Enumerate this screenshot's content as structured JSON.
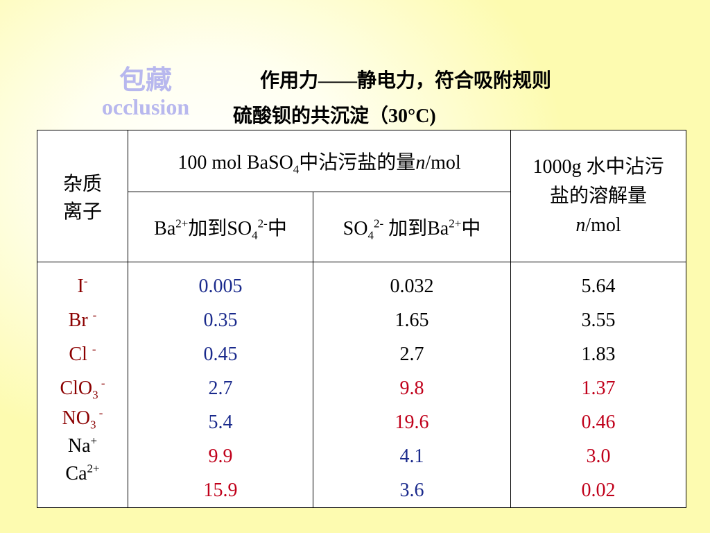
{
  "side": {
    "label_zh": "包藏",
    "label_en": "occlusion"
  },
  "title": {
    "line1": "作用力——静电力，符合吸附规则",
    "line2": "硫酸钡的共沉淀",
    "temp": "（30°C)"
  },
  "table": {
    "header": {
      "impurity_line1": "杂质",
      "impurity_line2": "离子",
      "group_prefix": "100 mol BaSO",
      "group_sub": "4",
      "group_mid": "中沾污盐的量",
      "group_n": "n",
      "group_unit": "/mol",
      "colA_base1": "Ba",
      "colA_sup1": "2+",
      "colA_mid": "加到SO",
      "colA_sub": "4",
      "colA_sup2": "2-",
      "colA_end": "中",
      "colB_base1": "SO",
      "colB_sub": "4",
      "colB_sup": "2-",
      "colB_mid": " 加到Ba",
      "colB_sup2": "2+",
      "colB_end": "中",
      "colC_line1": "1000g 水中沾污",
      "colC_line2": "盐的溶解量",
      "colC_n": "n",
      "colC_unit": "/mol"
    },
    "ions": [
      {
        "base": "I",
        "sub": "",
        "sup": "-"
      },
      {
        "base": "Br ",
        "sub": "",
        "sup": "-"
      },
      {
        "base": "Cl ",
        "sub": "",
        "sup": "-"
      },
      {
        "base": "ClO",
        "sub": "3",
        "sup": " -"
      },
      {
        "base": "NO",
        "sub": "3",
        "sup": " -"
      },
      {
        "base": "Na",
        "sub": "",
        "sup": "+"
      },
      {
        "base": "Ca",
        "sub": "",
        "sup": "2+"
      }
    ],
    "colA": [
      "0.005",
      "0.35",
      "0.45",
      "2.7",
      "5.4",
      "9.9",
      "15.9"
    ],
    "colB": [
      "0.032",
      "1.65",
      "2.7",
      "9.8",
      "19.6",
      "4.1",
      "3.6"
    ],
    "colC": [
      "5.64",
      "3.55",
      "1.83",
      "1.37",
      "0.46",
      "3.0",
      "0.02"
    ]
  },
  "colors": {
    "background": "#fdfbb0",
    "side_label": "#b8b8ee",
    "ion_red": "#8b0000",
    "value_blue": "#1a2a8c",
    "value_red": "#c0001a"
  }
}
